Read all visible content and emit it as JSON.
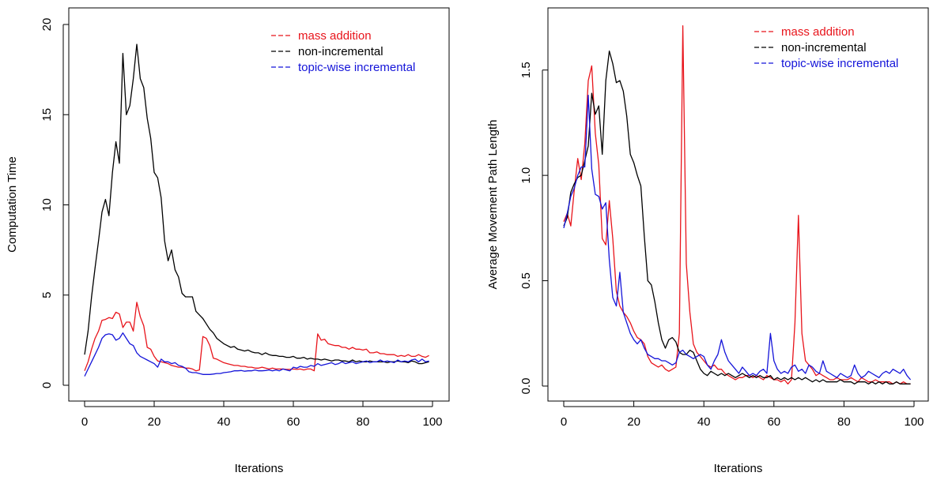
{
  "colors": {
    "red": "#e8141b",
    "black": "#000000",
    "blue": "#1414d9"
  },
  "chart_data": [
    {
      "type": "line",
      "title": "",
      "xlabel": "Iterations",
      "ylabel": "Computation Time",
      "xlim": [
        0,
        100
      ],
      "ylim": [
        0,
        20
      ],
      "xticks": [
        0,
        20,
        40,
        60,
        80,
        100
      ],
      "yticks": [
        0,
        5,
        10,
        15,
        20
      ],
      "grid": false,
      "legend_position": "top-right",
      "x": [
        0,
        1,
        2,
        3,
        4,
        5,
        6,
        7,
        8,
        9,
        10,
        11,
        12,
        13,
        14,
        15,
        16,
        17,
        18,
        19,
        20,
        21,
        22,
        23,
        24,
        25,
        26,
        27,
        28,
        29,
        30,
        31,
        32,
        33,
        34,
        35,
        36,
        37,
        38,
        39,
        40,
        41,
        42,
        43,
        44,
        45,
        46,
        47,
        48,
        49,
        50,
        51,
        52,
        53,
        54,
        55,
        56,
        57,
        58,
        59,
        60,
        61,
        62,
        63,
        64,
        65,
        66,
        67,
        68,
        69,
        70,
        71,
        72,
        73,
        74,
        75,
        76,
        77,
        78,
        79,
        80,
        81,
        82,
        83,
        84,
        85,
        86,
        87,
        88,
        89,
        90,
        91,
        92,
        93,
        94,
        95,
        96,
        97,
        98,
        99
      ],
      "series": [
        {
          "name": "mass addition",
          "color": "#e8141b",
          "values": [
            0.8,
            1.3,
            2.0,
            2.6,
            3.0,
            3.6,
            3.65,
            3.75,
            3.7,
            4.05,
            3.95,
            3.2,
            3.5,
            3.5,
            3.0,
            4.6,
            3.8,
            3.3,
            2.1,
            2.0,
            1.6,
            1.35,
            1.3,
            1.25,
            1.2,
            1.1,
            1.05,
            1.0,
            1.0,
            0.95,
            0.95,
            0.9,
            0.8,
            0.85,
            2.7,
            2.6,
            2.2,
            1.5,
            1.45,
            1.35,
            1.25,
            1.2,
            1.15,
            1.1,
            1.1,
            1.05,
            1.05,
            1.0,
            1.0,
            0.95,
            0.95,
            1.0,
            0.95,
            0.9,
            0.95,
            0.9,
            0.9,
            0.9,
            0.88,
            0.88,
            0.9,
            0.88,
            0.9,
            0.85,
            0.9,
            0.9,
            0.8,
            2.85,
            2.5,
            2.55,
            2.3,
            2.25,
            2.2,
            2.2,
            2.1,
            2.1,
            2.0,
            2.1,
            2.0,
            2.0,
            1.95,
            2.0,
            1.8,
            1.8,
            1.85,
            1.75,
            1.75,
            1.7,
            1.7,
            1.7,
            1.6,
            1.65,
            1.6,
            1.7,
            1.6,
            1.6,
            1.7,
            1.6,
            1.55,
            1.65
          ]
        },
        {
          "name": "non-incremental",
          "color": "#000000",
          "values": [
            1.7,
            3.0,
            4.9,
            6.5,
            8.0,
            9.6,
            10.3,
            9.4,
            11.8,
            13.5,
            12.3,
            18.4,
            15.0,
            15.5,
            17.0,
            18.9,
            17.0,
            16.5,
            14.8,
            13.7,
            11.8,
            11.5,
            10.4,
            8.0,
            6.9,
            7.5,
            6.4,
            6.0,
            5.1,
            4.9,
            4.9,
            4.9,
            4.1,
            3.9,
            3.7,
            3.4,
            3.1,
            2.9,
            2.6,
            2.45,
            2.3,
            2.2,
            2.1,
            2.15,
            2.0,
            1.95,
            1.9,
            1.95,
            1.85,
            1.8,
            1.8,
            1.7,
            1.8,
            1.7,
            1.65,
            1.65,
            1.6,
            1.6,
            1.55,
            1.55,
            1.6,
            1.5,
            1.5,
            1.55,
            1.45,
            1.5,
            1.45,
            1.45,
            1.4,
            1.45,
            1.4,
            1.35,
            1.4,
            1.4,
            1.35,
            1.35,
            1.3,
            1.4,
            1.3,
            1.35,
            1.3,
            1.3,
            1.35,
            1.3,
            1.3,
            1.3,
            1.3,
            1.25,
            1.3,
            1.3,
            1.35,
            1.3,
            1.3,
            1.25,
            1.35,
            1.3,
            1.2,
            1.2,
            1.25,
            1.3
          ]
        },
        {
          "name": "topic-wise incremental",
          "color": "#1414d9",
          "values": [
            0.5,
            0.9,
            1.3,
            1.7,
            2.1,
            2.6,
            2.8,
            2.85,
            2.8,
            2.5,
            2.6,
            2.9,
            2.6,
            2.3,
            2.2,
            1.8,
            1.6,
            1.5,
            1.4,
            1.3,
            1.2,
            1.0,
            1.45,
            1.3,
            1.3,
            1.2,
            1.25,
            1.1,
            1.05,
            0.95,
            0.75,
            0.7,
            0.7,
            0.65,
            0.6,
            0.6,
            0.6,
            0.62,
            0.65,
            0.65,
            0.7,
            0.72,
            0.75,
            0.8,
            0.8,
            0.82,
            0.78,
            0.8,
            0.8,
            0.85,
            0.8,
            0.8,
            0.82,
            0.85,
            0.8,
            0.85,
            0.8,
            0.9,
            0.85,
            0.8,
            1.0,
            0.95,
            1.05,
            1.0,
            1.0,
            1.1,
            1.05,
            1.2,
            1.1,
            1.15,
            1.2,
            1.25,
            1.15,
            1.2,
            1.3,
            1.2,
            1.25,
            1.3,
            1.2,
            1.25,
            1.3,
            1.35,
            1.25,
            1.3,
            1.3,
            1.4,
            1.3,
            1.35,
            1.3,
            1.25,
            1.4,
            1.3,
            1.35,
            1.3,
            1.4,
            1.45,
            1.3,
            1.45,
            1.3,
            1.35
          ]
        }
      ]
    },
    {
      "type": "line",
      "title": "",
      "xlabel": "Iterations",
      "ylabel": "Average Movement Path Length",
      "xlim": [
        0,
        100
      ],
      "ylim": [
        0,
        1.72
      ],
      "xticks": [
        0,
        20,
        40,
        60,
        80,
        100
      ],
      "yticks": [
        0.0,
        0.5,
        1.0,
        1.5
      ],
      "ytick_labels": [
        "0.0",
        "0.5",
        "1.0",
        "1.5"
      ],
      "grid": false,
      "legend_position": "top-right",
      "x": [
        0,
        1,
        2,
        3,
        4,
        5,
        6,
        7,
        8,
        9,
        10,
        11,
        12,
        13,
        14,
        15,
        16,
        17,
        18,
        19,
        20,
        21,
        22,
        23,
        24,
        25,
        26,
        27,
        28,
        29,
        30,
        31,
        32,
        33,
        34,
        35,
        36,
        37,
        38,
        39,
        40,
        41,
        42,
        43,
        44,
        45,
        46,
        47,
        48,
        49,
        50,
        51,
        52,
        53,
        54,
        55,
        56,
        57,
        58,
        59,
        60,
        61,
        62,
        63,
        64,
        65,
        66,
        67,
        68,
        69,
        70,
        71,
        72,
        73,
        74,
        75,
        76,
        77,
        78,
        79,
        80,
        81,
        82,
        83,
        84,
        85,
        86,
        87,
        88,
        89,
        90,
        91,
        92,
        93,
        94,
        95,
        96,
        97,
        98,
        99
      ],
      "series": [
        {
          "name": "mass addition",
          "color": "#e8141b",
          "values": [
            0.78,
            0.82,
            0.76,
            0.93,
            1.08,
            0.98,
            1.15,
            1.45,
            1.52,
            1.2,
            1.05,
            0.7,
            0.67,
            0.88,
            0.7,
            0.45,
            0.38,
            0.35,
            0.33,
            0.3,
            0.26,
            0.23,
            0.22,
            0.2,
            0.14,
            0.11,
            0.1,
            0.09,
            0.1,
            0.08,
            0.07,
            0.08,
            0.09,
            0.25,
            1.71,
            0.58,
            0.35,
            0.2,
            0.16,
            0.14,
            0.12,
            0.1,
            0.09,
            0.1,
            0.08,
            0.08,
            0.06,
            0.05,
            0.04,
            0.03,
            0.04,
            0.04,
            0.05,
            0.05,
            0.04,
            0.05,
            0.04,
            0.03,
            0.05,
            0.04,
            0.03,
            0.03,
            0.02,
            0.03,
            0.01,
            0.03,
            0.3,
            0.81,
            0.25,
            0.12,
            0.1,
            0.08,
            0.05,
            0.06,
            0.05,
            0.04,
            0.03,
            0.03,
            0.04,
            0.03,
            0.03,
            0.03,
            0.04,
            0.03,
            0.02,
            0.04,
            0.03,
            0.02,
            0.02,
            0.03,
            0.02,
            0.02,
            0.02,
            0.02,
            0.01,
            0.02,
            0.01,
            0.02,
            0.01,
            0.01
          ]
        },
        {
          "name": "non-incremental",
          "color": "#000000",
          "values": [
            0.76,
            0.8,
            0.92,
            0.96,
            0.99,
            1.0,
            1.07,
            1.14,
            1.39,
            1.29,
            1.33,
            1.1,
            1.45,
            1.59,
            1.53,
            1.44,
            1.45,
            1.4,
            1.28,
            1.1,
            1.06,
            1.0,
            0.95,
            0.71,
            0.5,
            0.48,
            0.4,
            0.3,
            0.22,
            0.18,
            0.22,
            0.23,
            0.21,
            0.16,
            0.15,
            0.15,
            0.17,
            0.16,
            0.12,
            0.08,
            0.06,
            0.05,
            0.07,
            0.06,
            0.05,
            0.06,
            0.05,
            0.06,
            0.05,
            0.04,
            0.05,
            0.06,
            0.05,
            0.04,
            0.05,
            0.04,
            0.05,
            0.04,
            0.04,
            0.05,
            0.03,
            0.04,
            0.03,
            0.04,
            0.03,
            0.04,
            0.03,
            0.04,
            0.03,
            0.04,
            0.03,
            0.02,
            0.03,
            0.02,
            0.03,
            0.02,
            0.02,
            0.02,
            0.02,
            0.03,
            0.02,
            0.02,
            0.02,
            0.01,
            0.02,
            0.02,
            0.02,
            0.01,
            0.02,
            0.01,
            0.02,
            0.01,
            0.02,
            0.01,
            0.01,
            0.02,
            0.01,
            0.01,
            0.01,
            0.01
          ]
        },
        {
          "name": "topic-wise incremental",
          "color": "#1414d9",
          "values": [
            0.75,
            0.82,
            0.9,
            0.94,
            1.0,
            1.04,
            1.04,
            1.38,
            1.03,
            0.91,
            0.9,
            0.84,
            0.87,
            0.6,
            0.42,
            0.38,
            0.54,
            0.35,
            0.3,
            0.25,
            0.22,
            0.2,
            0.22,
            0.18,
            0.15,
            0.14,
            0.13,
            0.13,
            0.12,
            0.12,
            0.11,
            0.1,
            0.11,
            0.16,
            0.17,
            0.15,
            0.14,
            0.13,
            0.14,
            0.15,
            0.14,
            0.1,
            0.08,
            0.12,
            0.15,
            0.22,
            0.16,
            0.12,
            0.1,
            0.08,
            0.06,
            0.09,
            0.07,
            0.05,
            0.06,
            0.05,
            0.07,
            0.08,
            0.06,
            0.25,
            0.12,
            0.08,
            0.06,
            0.07,
            0.06,
            0.09,
            0.1,
            0.07,
            0.08,
            0.06,
            0.1,
            0.09,
            0.07,
            0.06,
            0.12,
            0.07,
            0.06,
            0.05,
            0.04,
            0.06,
            0.05,
            0.04,
            0.05,
            0.1,
            0.06,
            0.04,
            0.05,
            0.07,
            0.06,
            0.05,
            0.04,
            0.06,
            0.07,
            0.06,
            0.08,
            0.07,
            0.06,
            0.08,
            0.05,
            0.03
          ]
        }
      ]
    }
  ]
}
